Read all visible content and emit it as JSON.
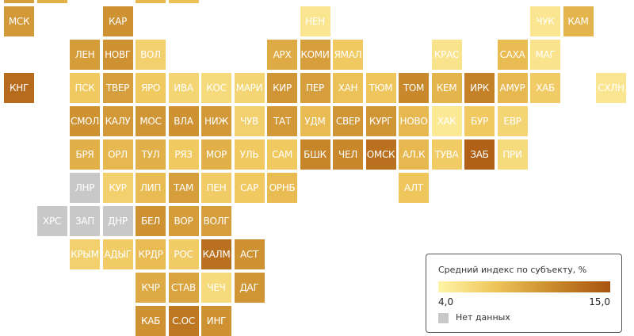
{
  "legend": {
    "title": "Средний индекс по субъекту, %",
    "min_label": "4,0",
    "max_label": "15,0",
    "no_data_label": "Нет данных",
    "scale_colors": [
      "#fff5a8",
      "#eec459",
      "#c98a2c",
      "#a85410"
    ],
    "no_data_color": "#c8c8c8"
  },
  "regions": [
    {
      "label": "",
      "col": 0,
      "row": -1,
      "level": 0.55
    },
    {
      "label": "",
      "col": 1,
      "row": -1,
      "level": 0.45
    },
    {
      "label": "",
      "col": 4,
      "row": -1,
      "level": 0.4
    },
    {
      "label": "",
      "col": 5,
      "row": -1,
      "level": 0.35
    },
    {
      "label": "МСК",
      "col": 0,
      "row": 0,
      "level": 0.58
    },
    {
      "label": "КАР",
      "col": 3,
      "row": 0,
      "level": 0.62
    },
    {
      "label": "НЕН",
      "col": 9,
      "row": 0,
      "level": 0.1
    },
    {
      "label": "ЧУК",
      "col": 16,
      "row": 0,
      "level": 0.1
    },
    {
      "label": "КАМ",
      "col": 17,
      "row": 0,
      "level": 0.42
    },
    {
      "label": "ЛЕН",
      "col": 2,
      "row": 1,
      "level": 0.56
    },
    {
      "label": "НОВГ",
      "col": 3,
      "row": 1,
      "level": 0.62
    },
    {
      "label": "ВОЛ",
      "col": 4,
      "row": 1,
      "level": 0.25
    },
    {
      "label": "АРХ",
      "col": 8,
      "row": 1,
      "level": 0.48
    },
    {
      "label": "КОМИ",
      "col": 9,
      "row": 1,
      "level": 0.55
    },
    {
      "label": "ЯМАЛ",
      "col": 10,
      "row": 1,
      "level": 0.3
    },
    {
      "label": "КРАС",
      "col": 13,
      "row": 1,
      "level": 0.12
    },
    {
      "label": "САХА",
      "col": 15,
      "row": 1,
      "level": 0.38
    },
    {
      "label": "МАГ",
      "col": 16,
      "row": 1,
      "level": 0.12
    },
    {
      "label": "КНГ",
      "col": 0,
      "row": 2,
      "level": 0.85
    },
    {
      "label": "ПСК",
      "col": 2,
      "row": 2,
      "level": 0.3
    },
    {
      "label": "ТВЕР",
      "col": 3,
      "row": 2,
      "level": 0.55
    },
    {
      "label": "ЯРО",
      "col": 4,
      "row": 2,
      "level": 0.3
    },
    {
      "label": "ИВА",
      "col": 5,
      "row": 2,
      "level": 0.22
    },
    {
      "label": "КОС",
      "col": 6,
      "row": 2,
      "level": 0.18
    },
    {
      "label": "МАРИ",
      "col": 7,
      "row": 2,
      "level": 0.22
    },
    {
      "label": "КИР",
      "col": 8,
      "row": 2,
      "level": 0.6
    },
    {
      "label": "ПЕР",
      "col": 9,
      "row": 2,
      "level": 0.55
    },
    {
      "label": "ХАН",
      "col": 10,
      "row": 2,
      "level": 0.35
    },
    {
      "label": "ТЮМ",
      "col": 11,
      "row": 2,
      "level": 0.32
    },
    {
      "label": "ТОМ",
      "col": 12,
      "row": 2,
      "level": 0.68
    },
    {
      "label": "КЕМ",
      "col": 13,
      "row": 2,
      "level": 0.42
    },
    {
      "label": "ИРК",
      "col": 14,
      "row": 2,
      "level": 0.72
    },
    {
      "label": "АМУР",
      "col": 15,
      "row": 2,
      "level": 0.4
    },
    {
      "label": "ХАБ",
      "col": 16,
      "row": 2,
      "level": 0.28
    },
    {
      "label": "СХЛН",
      "col": 18,
      "row": 2,
      "level": 0.1
    },
    {
      "label": "СМОЛ",
      "col": 2,
      "row": 3,
      "level": 0.62
    },
    {
      "label": "КАЛУ",
      "col": 3,
      "row": 3,
      "level": 0.58
    },
    {
      "label": "МОС",
      "col": 4,
      "row": 3,
      "level": 0.6
    },
    {
      "label": "ВЛА",
      "col": 5,
      "row": 3,
      "level": 0.62
    },
    {
      "label": "НИЖ",
      "col": 6,
      "row": 3,
      "level": 0.58
    },
    {
      "label": "ЧУВ",
      "col": 7,
      "row": 3,
      "level": 0.25
    },
    {
      "label": "ТАТ",
      "col": 8,
      "row": 3,
      "level": 0.58
    },
    {
      "label": "УДМ",
      "col": 9,
      "row": 3,
      "level": 0.38
    },
    {
      "label": "СВЕР",
      "col": 10,
      "row": 3,
      "level": 0.6
    },
    {
      "label": "КУРГ",
      "col": 11,
      "row": 3,
      "level": 0.6
    },
    {
      "label": "НОВО",
      "col": 12,
      "row": 3,
      "level": 0.4
    },
    {
      "label": "ХАК",
      "col": 13,
      "row": 3,
      "level": 0.08
    },
    {
      "label": "БУР",
      "col": 14,
      "row": 3,
      "level": 0.3
    },
    {
      "label": "ЕВР",
      "col": 15,
      "row": 3,
      "level": 0.22
    },
    {
      "label": "БРЯ",
      "col": 2,
      "row": 4,
      "level": 0.45
    },
    {
      "label": "ОРЛ",
      "col": 3,
      "row": 4,
      "level": 0.4
    },
    {
      "label": "ТУЛ",
      "col": 4,
      "row": 4,
      "level": 0.45
    },
    {
      "label": "РЯЗ",
      "col": 5,
      "row": 4,
      "level": 0.3
    },
    {
      "label": "МОР",
      "col": 6,
      "row": 4,
      "level": 0.45
    },
    {
      "label": "УЛЬ",
      "col": 7,
      "row": 4,
      "level": 0.3
    },
    {
      "label": "САМ",
      "col": 8,
      "row": 4,
      "level": 0.3
    },
    {
      "label": "БШК",
      "col": 9,
      "row": 4,
      "level": 0.7
    },
    {
      "label": "ЧЕЛ",
      "col": 10,
      "row": 4,
      "level": 0.68
    },
    {
      "label": "ОМСК",
      "col": 11,
      "row": 4,
      "level": 0.82
    },
    {
      "label": "АЛ.К",
      "col": 12,
      "row": 4,
      "level": 0.4
    },
    {
      "label": "ТУВА",
      "col": 13,
      "row": 4,
      "level": 0.28
    },
    {
      "label": "ЗАБ",
      "col": 14,
      "row": 4,
      "level": 0.92
    },
    {
      "label": "ПРИ",
      "col": 15,
      "row": 4,
      "level": 0.18
    },
    {
      "label": "ЛНР",
      "col": 2,
      "row": 5,
      "level": null
    },
    {
      "label": "КУР",
      "col": 3,
      "row": 5,
      "level": 0.25
    },
    {
      "label": "ЛИП",
      "col": 4,
      "row": 5,
      "level": 0.38
    },
    {
      "label": "ТАМ",
      "col": 5,
      "row": 5,
      "level": 0.55
    },
    {
      "label": "ПЕН",
      "col": 6,
      "row": 5,
      "level": 0.28
    },
    {
      "label": "САР",
      "col": 7,
      "row": 5,
      "level": 0.3
    },
    {
      "label": "ОРНБ",
      "col": 8,
      "row": 5,
      "level": 0.38
    },
    {
      "label": "АЛТ",
      "col": 12,
      "row": 5,
      "level": 0.32
    },
    {
      "label": "ХРС",
      "col": 1,
      "row": 6,
      "level": null
    },
    {
      "label": "ЗАП",
      "col": 2,
      "row": 6,
      "level": null
    },
    {
      "label": "ДНР",
      "col": 3,
      "row": 6,
      "level": null
    },
    {
      "label": "БЕЛ",
      "col": 4,
      "row": 6,
      "level": 0.62
    },
    {
      "label": "ВОР",
      "col": 5,
      "row": 6,
      "level": 0.56
    },
    {
      "label": "ВОЛГ",
      "col": 6,
      "row": 6,
      "level": 0.55
    },
    {
      "label": "КРЫМ",
      "col": 2,
      "row": 7,
      "level": 0.25
    },
    {
      "label": "АДЫГ",
      "col": 3,
      "row": 7,
      "level": 0.28
    },
    {
      "label": "КРДР",
      "col": 4,
      "row": 7,
      "level": 0.38
    },
    {
      "label": "РОС",
      "col": 5,
      "row": 7,
      "level": 0.28
    },
    {
      "label": "КАЛМ",
      "col": 6,
      "row": 7,
      "level": 0.82
    },
    {
      "label": "АСТ",
      "col": 7,
      "row": 7,
      "level": 0.62
    },
    {
      "label": "КЧР",
      "col": 4,
      "row": 8,
      "level": 0.48
    },
    {
      "label": "СТАВ",
      "col": 5,
      "row": 8,
      "level": 0.52
    },
    {
      "label": "ЧЕЧ",
      "col": 6,
      "row": 8,
      "level": 0.18
    },
    {
      "label": "ДАГ",
      "col": 7,
      "row": 8,
      "level": 0.6
    },
    {
      "label": "КАБ",
      "col": 4,
      "row": 9,
      "level": 0.62
    },
    {
      "label": "С.ОС",
      "col": 5,
      "row": 9,
      "level": 0.78
    },
    {
      "label": "ИНГ",
      "col": 6,
      "row": 9,
      "level": 0.62
    }
  ]
}
